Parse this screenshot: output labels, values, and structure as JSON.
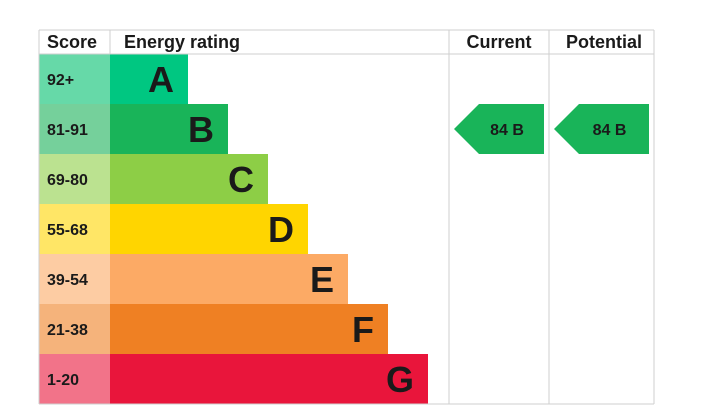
{
  "chart_data": {
    "type": "bar",
    "headers": {
      "score": "Score",
      "rating": "Energy rating",
      "current": "Current",
      "potential": "Potential"
    },
    "bands": [
      {
        "range": "92+",
        "letter": "A",
        "color": "#00c781",
        "score_color": "#66d9a8"
      },
      {
        "range": "81-91",
        "letter": "B",
        "color": "#19b459",
        "score_color": "#75d09b"
      },
      {
        "range": "69-80",
        "letter": "C",
        "color": "#8dce46",
        "score_color": "#bbe290"
      },
      {
        "range": "55-68",
        "letter": "D",
        "color": "#ffd500",
        "score_color": "#ffe666"
      },
      {
        "range": "39-54",
        "letter": "E",
        "color": "#fcaa65",
        "score_color": "#fdcca3"
      },
      {
        "range": "21-38",
        "letter": "F",
        "color": "#ef8023",
        "score_color": "#f5b37b"
      },
      {
        "range": "1-20",
        "letter": "G",
        "color": "#e9153b",
        "score_color": "#f27389"
      }
    ],
    "current": {
      "value": 84,
      "letter": "B",
      "label": "84  B",
      "color": "#19b459"
    },
    "potential": {
      "value": 84,
      "letter": "B",
      "label": "84  B",
      "color": "#19b459"
    }
  }
}
